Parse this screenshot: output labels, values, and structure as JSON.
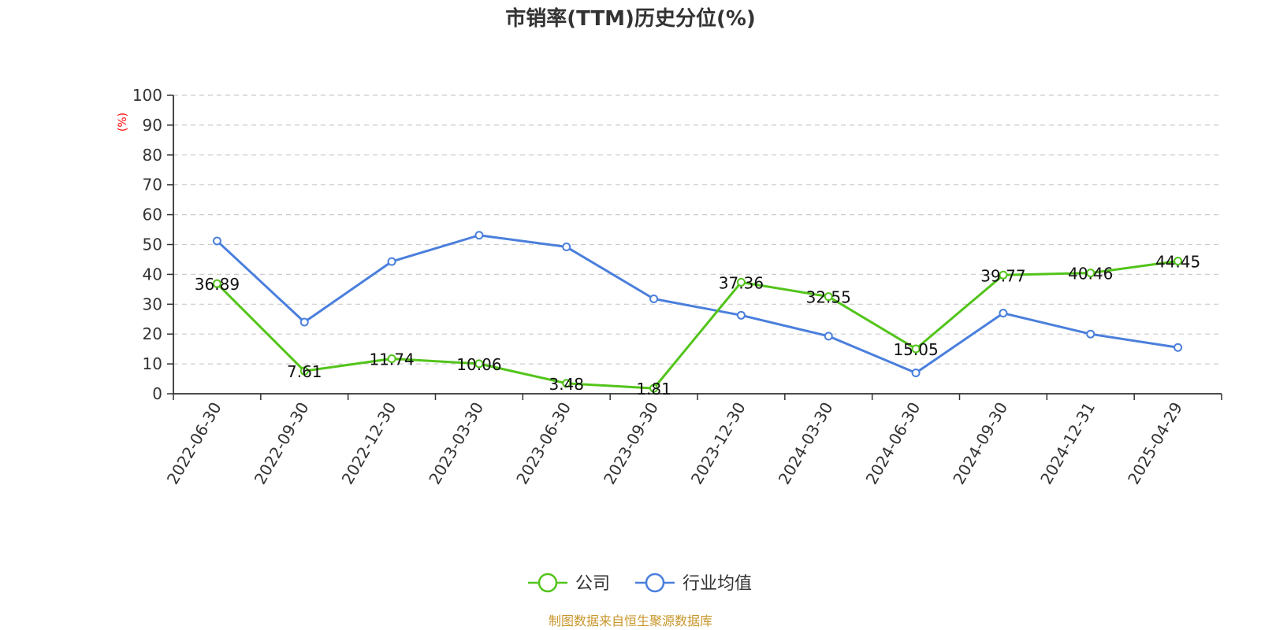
{
  "chart_data": {
    "type": "line",
    "title": "市销率(TTM)历史分位(%)",
    "ylabel": "(%)",
    "ylim": [
      0,
      100
    ],
    "yticks": [
      "0",
      "10",
      "20",
      "30",
      "40",
      "50",
      "60",
      "70",
      "80",
      "90",
      "100"
    ],
    "grid": true,
    "legend_position": "bottom",
    "categories": [
      "2022-06-30",
      "2022-09-30",
      "2022-12-30",
      "2023-03-30",
      "2023-06-30",
      "2023-09-30",
      "2023-12-30",
      "2024-03-30",
      "2024-06-30",
      "2024-09-30",
      "2024-12-31",
      "2025-04-29"
    ],
    "series": [
      {
        "name": "公司",
        "color": "#52c41a",
        "values": [
          36.89,
          7.61,
          11.74,
          10.06,
          3.48,
          1.81,
          37.36,
          32.55,
          15.05,
          39.77,
          40.46,
          44.45
        ],
        "labels": [
          "36.89",
          "7.61",
          "11.74",
          "10.06",
          "3.48",
          "1.81",
          "37.36",
          "32.55",
          "15.05",
          "39.77",
          "40.46",
          "44.45"
        ]
      },
      {
        "name": "行业均值",
        "color": "#4a7fdc",
        "values": [
          51.2,
          24.0,
          44.3,
          53.1,
          49.2,
          31.8,
          26.3,
          19.3,
          7.0,
          27.0,
          20.0,
          15.5
        ]
      }
    ]
  },
  "source": "制图数据来自恒生聚源数据库",
  "colors": {
    "axis": "#333333",
    "grid": "#cccccc",
    "unit": "#ff0000",
    "source": "#c8962a"
  }
}
